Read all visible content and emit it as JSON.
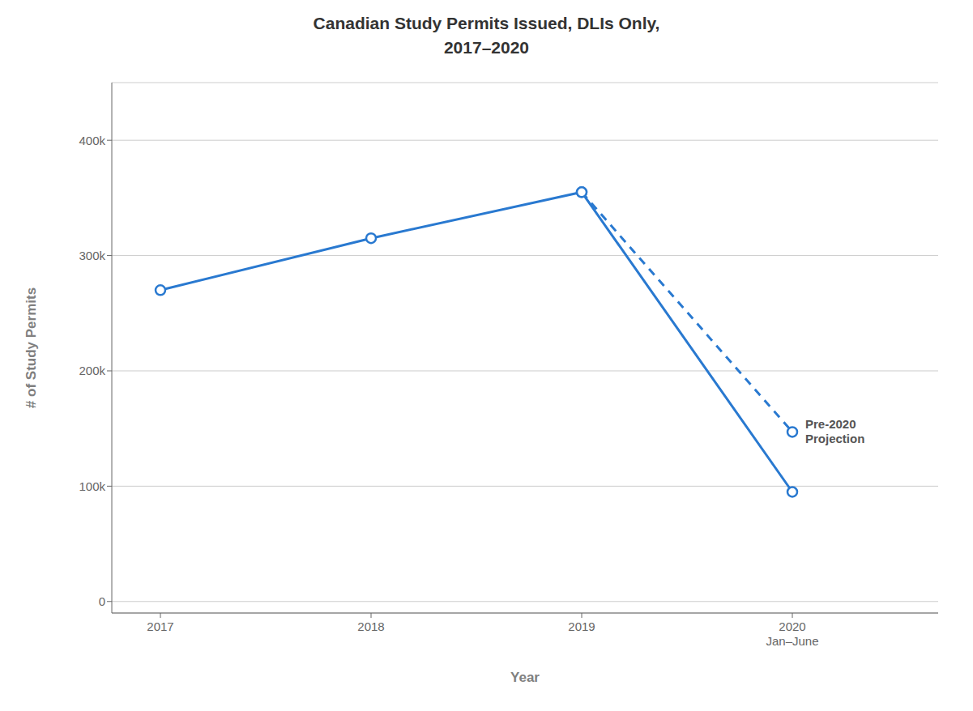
{
  "chart_data": {
    "type": "line",
    "title": "Canadian Study Permits Issued, DLIs Only,\n2017–2020",
    "x_label": "Year",
    "y_label": "# of Study Permits",
    "categories": [
      "2017",
      "2018",
      "2019",
      "2020\nJan–June"
    ],
    "series": [
      {
        "values": [
          270000,
          315000,
          355000,
          95000
        ],
        "color": "#2979d0",
        "line_style": "solid",
        "marker": "circle"
      },
      {
        "values": [
          null,
          null,
          355000,
          147000
        ],
        "color": "#2979d0",
        "line_style": "dashed",
        "marker": "circle"
      }
    ],
    "annotation": "Pre-2020\nProjection",
    "ylim": [
      -10000,
      450000
    ],
    "yticks": [
      0,
      {
        "value": 100000,
        "label": "100k"
      },
      {
        "value": 200000,
        "label": "200k"
      },
      {
        "value": 300000,
        "label": "300k"
      },
      {
        "value": 400000,
        "label": "400k"
      }
    ],
    "grid": true
  }
}
